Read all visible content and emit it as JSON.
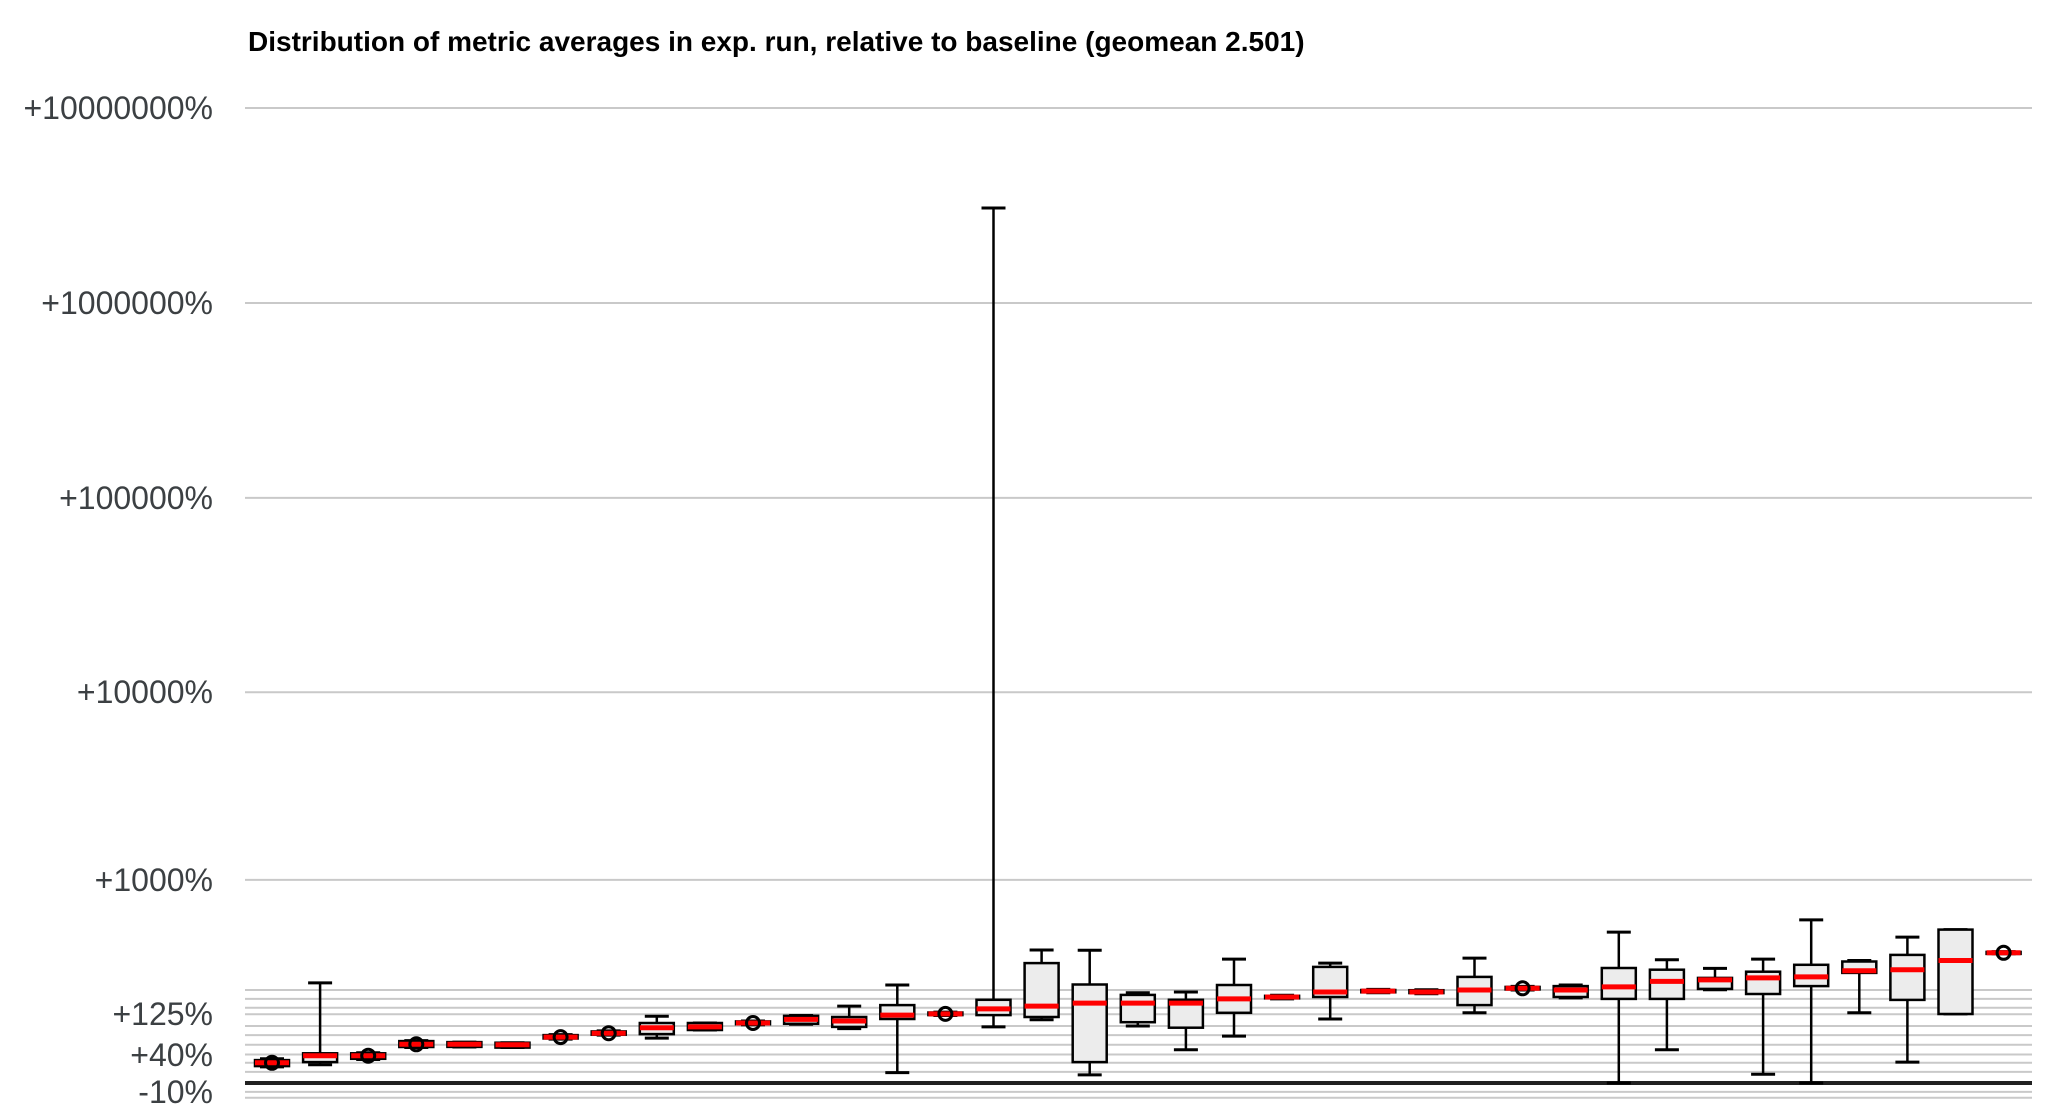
{
  "chart_data": {
    "type": "boxplot",
    "title": "Distribution of metric averages in exp. run, relative to baseline (geomean 2.501)",
    "geomean": 2.501,
    "orientation": "vertical",
    "x_axis": {
      "tick_labels": "none"
    },
    "y_axis": {
      "unit": "percent relative to baseline",
      "scale": "logarithmic in ratio (1 + pct/100)",
      "major_ticks": [
        {
          "label": "+10000000%",
          "pct": 10000000
        },
        {
          "label": "+1000000%",
          "pct": 1000000
        },
        {
          "label": "+100000%",
          "pct": 100000
        },
        {
          "label": "+10000%",
          "pct": 10000
        },
        {
          "label": "+1000%",
          "pct": 1000
        },
        {
          "label": "+125%",
          "pct": 125
        },
        {
          "label": "+40%",
          "pct": 40
        },
        {
          "label": "-10%",
          "pct": -10
        }
      ],
      "minor_gridlines_pct": [
        200,
        170,
        143,
        96,
        76,
        57,
        27,
        14,
        -16
      ],
      "zero_baseline_pct": 0
    },
    "legend_position": "none",
    "grid": true,
    "boxes": [
      {
        "whisker_low": 21,
        "q1": 22,
        "median": 27,
        "q3": 31,
        "whisker_high": 33,
        "mean_marker": true
      },
      {
        "whisker_low": 24,
        "q1": 28,
        "median": 38,
        "q3": 42,
        "whisker_high": 226,
        "mean_marker": false
      },
      {
        "whisker_low": 32,
        "q1": 33,
        "median": 38,
        "q3": 42,
        "whisker_high": 43,
        "mean_marker": true
      },
      {
        "whisker_low": 52,
        "q1": 53,
        "median": 58,
        "q3": 64,
        "whisker_high": 65,
        "mean_marker": true
      },
      {
        "whisker_low": 53,
        "q1": 53,
        "median": 58,
        "q3": 62,
        "whisker_high": 62,
        "mean_marker": false
      },
      {
        "whisker_low": 52,
        "q1": 52,
        "median": 57,
        "q3": 61,
        "whisker_high": 61,
        "mean_marker": false
      },
      {
        "whisker_low": 68,
        "q1": 69,
        "median": 72,
        "q3": 76,
        "whisker_high": 77,
        "mean_marker": true
      },
      {
        "whisker_low": 76,
        "q1": 77,
        "median": 80,
        "q3": 84,
        "whisker_high": 85,
        "mean_marker": true
      },
      {
        "whisker_low": 70,
        "q1": 78,
        "median": 92,
        "q3": 103,
        "whisker_high": 120,
        "mean_marker": false
      },
      {
        "whisker_low": 87,
        "q1": 87,
        "median": 94,
        "q3": 103,
        "whisker_high": 103,
        "mean_marker": false
      },
      {
        "whisker_low": 99,
        "q1": 100,
        "median": 103,
        "q3": 107,
        "whisker_high": 108,
        "mean_marker": true
      },
      {
        "whisker_low": 100,
        "q1": 101,
        "median": 112,
        "q3": 121,
        "whisker_high": 122,
        "mean_marker": false
      },
      {
        "whisker_low": 90,
        "q1": 94,
        "median": 108,
        "q3": 118,
        "whisker_high": 148,
        "mean_marker": false
      },
      {
        "whisker_low": 13,
        "q1": 113,
        "median": 123,
        "q3": 151,
        "whisker_high": 218,
        "mean_marker": false
      },
      {
        "whisker_low": 122,
        "q1": 123,
        "median": 126,
        "q3": 130,
        "whisker_high": 131,
        "mean_marker": true
      },
      {
        "whisker_low": 94,
        "q1": 123,
        "median": 140,
        "q3": 167,
        "whisker_high": 3070000,
        "mean_marker": false
      },
      {
        "whisker_low": 111,
        "q1": 118,
        "median": 148,
        "q3": 312,
        "whisker_high": 381,
        "mean_marker": false
      },
      {
        "whisker_low": 10,
        "q1": 28,
        "median": 157,
        "q3": 220,
        "whisker_high": 379,
        "mean_marker": false
      },
      {
        "whisker_low": 96,
        "q1": 105,
        "median": 157,
        "q3": 183,
        "whisker_high": 190,
        "mean_marker": false
      },
      {
        "whisker_low": 48,
        "q1": 92,
        "median": 157,
        "q3": 167,
        "whisker_high": 193,
        "mean_marker": false
      },
      {
        "whisker_low": 74,
        "q1": 129,
        "median": 170,
        "q3": 218,
        "whisker_high": 332,
        "mean_marker": false
      },
      {
        "whisker_low": 170,
        "q1": 172,
        "median": 176,
        "q3": 180,
        "whisker_high": 182,
        "mean_marker": false
      },
      {
        "whisker_low": 113,
        "q1": 176,
        "median": 193,
        "q3": 294,
        "whisker_high": 312,
        "mean_marker": false
      },
      {
        "whisker_low": 190,
        "q1": 192,
        "median": 196,
        "q3": 200,
        "whisker_high": 202,
        "mean_marker": false
      },
      {
        "whisker_low": 187,
        "q1": 189,
        "median": 193,
        "q3": 199,
        "whisker_high": 201,
        "mean_marker": false
      },
      {
        "whisker_low": 129,
        "q1": 151,
        "median": 200,
        "q3": 250,
        "whisker_high": 337,
        "mean_marker": false
      },
      {
        "whisker_low": 200,
        "q1": 202,
        "median": 206,
        "q3": 211,
        "whisker_high": 213,
        "mean_marker": true
      },
      {
        "whisker_low": 173,
        "q1": 176,
        "median": 200,
        "q3": 214,
        "whisker_high": 218,
        "mean_marker": false
      },
      {
        "whisker_low": 0,
        "q1": 170,
        "median": 211,
        "q3": 289,
        "whisker_high": 494,
        "mean_marker": false
      },
      {
        "whisker_low": 48,
        "q1": 170,
        "median": 232,
        "q3": 281,
        "whisker_high": 329,
        "mean_marker": false
      },
      {
        "whisker_low": 201,
        "q1": 204,
        "median": 238,
        "q3": 246,
        "whisker_high": 287,
        "mean_marker": false
      },
      {
        "whisker_low": 11,
        "q1": 186,
        "median": 246,
        "q3": 272,
        "whisker_high": 332,
        "mean_marker": false
      },
      {
        "whisker_low": 0,
        "q1": 214,
        "median": 250,
        "q3": 304,
        "whisker_high": 586,
        "mean_marker": false
      },
      {
        "whisker_low": 129,
        "q1": 267,
        "median": 276,
        "q3": 320,
        "whisker_high": 325,
        "mean_marker": false
      },
      {
        "whisker_low": 28,
        "q1": 167,
        "median": 281,
        "q3": 354,
        "whisker_high": 460,
        "mean_marker": false
      },
      {
        "whisker_low": 126,
        "q1": 126,
        "median": 325,
        "q3": 512,
        "whisker_high": 512,
        "mean_marker": false
      },
      {
        "whisker_low": 360,
        "q1": 361,
        "median": 365,
        "q3": 370,
        "whisker_high": 372,
        "mean_marker": true
      }
    ]
  },
  "colors": {
    "background": "#ffffff",
    "title": "#000000",
    "tick_label": "#3c4043",
    "gridline": "#c9c9c9",
    "zero_line": "#212121",
    "box_fill": "#ececec",
    "box_edge": "#000000",
    "whisker": "#000000",
    "median": "#ff0000",
    "mean_marker": "#000000"
  }
}
